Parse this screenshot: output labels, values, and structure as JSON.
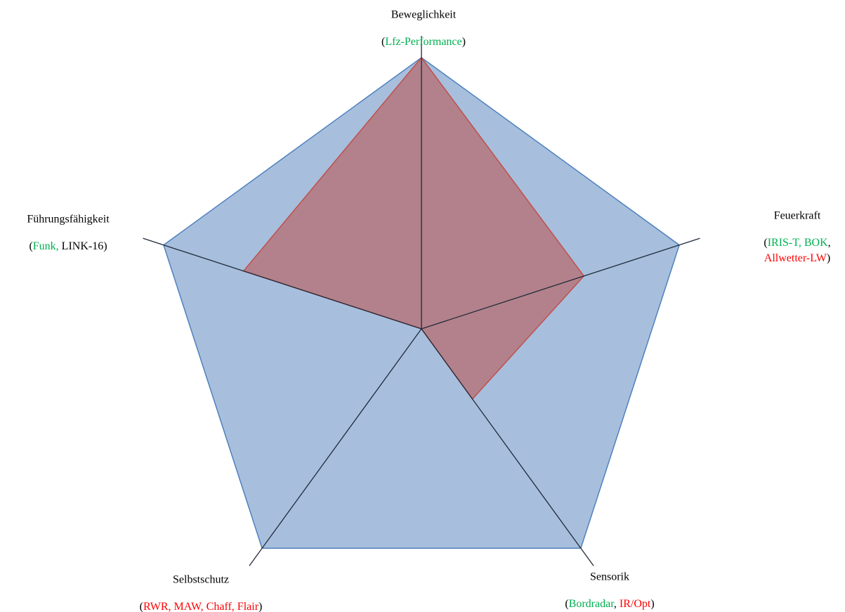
{
  "chart_data": {
    "type": "radar",
    "categories": [
      "Beweglichkeit",
      "Feuerkraft",
      "Sensorik",
      "Selbstschutz",
      "Führungsfähigkeit"
    ],
    "category_details": [
      [
        [
          {
            "text": "(",
            "color": "#000000"
          },
          {
            "text": "Lfz-Performance",
            "color": "#00b050"
          },
          {
            "text": ")",
            "color": "#000000"
          }
        ]
      ],
      [
        [
          {
            "text": "(",
            "color": "#000000"
          },
          {
            "text": "IRIS-T, BOK",
            "color": "#00b050"
          },
          {
            "text": ",",
            "color": "#000000"
          }
        ],
        [
          {
            "text": "Allwetter-LW",
            "color": "#ff0000"
          },
          {
            "text": ")",
            "color": "#000000"
          }
        ]
      ],
      [
        [
          {
            "text": "(",
            "color": "#000000"
          },
          {
            "text": "Bordradar",
            "color": "#00b050"
          },
          {
            "text": ", ",
            "color": "#000000"
          },
          {
            "text": "IR/Opt",
            "color": "#ff0000"
          },
          {
            "text": ")",
            "color": "#000000"
          }
        ]
      ],
      [
        [
          {
            "text": "(",
            "color": "#000000"
          },
          {
            "text": "RWR, MAW, Chaff, Flair",
            "color": "#ff0000"
          },
          {
            "text": ")",
            "color": "#000000"
          }
        ]
      ],
      [
        [
          {
            "text": "(",
            "color": "#000000"
          },
          {
            "text": "Funk,",
            "color": "#00b050"
          },
          {
            "text": " LINK-16)",
            "color": "#000000"
          }
        ]
      ]
    ],
    "rlim": [
      0,
      1
    ],
    "series": [
      {
        "color": "#4f81bd",
        "fill": "#a7bfdd",
        "values": [
          1,
          1,
          1,
          1,
          1
        ]
      },
      {
        "color": "#c0504d",
        "fill": "#b5767c",
        "values": [
          1,
          0.63,
          0.32,
          0,
          0.69
        ]
      }
    ]
  }
}
